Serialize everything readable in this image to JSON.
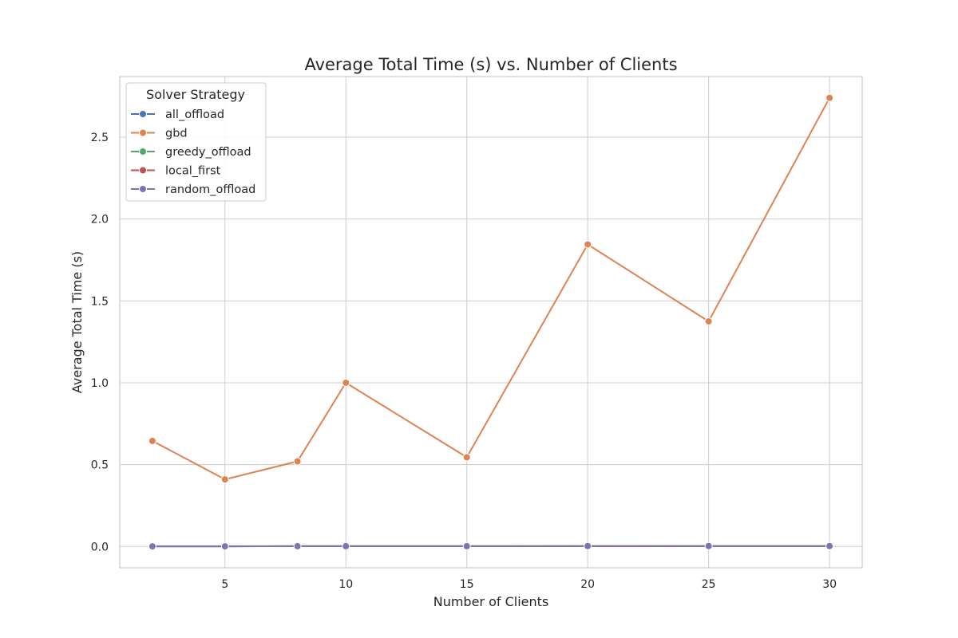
{
  "chart_data": {
    "type": "line",
    "title": "Average Total Time (s) vs. Number of Clients",
    "xlabel": "Number of Clients",
    "ylabel": "Average Total Time (s)",
    "x": [
      2,
      5,
      8,
      10,
      15,
      20,
      25,
      30
    ],
    "xlim": [
      0.65,
      31.35
    ],
    "ylim": [
      -0.13,
      2.87
    ],
    "xticks": [
      5,
      10,
      15,
      20,
      25,
      30
    ],
    "xtick_labels": [
      "5",
      "10",
      "15",
      "20",
      "25",
      "30"
    ],
    "yticks": [
      0.0,
      0.5,
      1.0,
      1.5,
      2.0,
      2.5
    ],
    "ytick_labels": [
      "0.0",
      "0.5",
      "1.0",
      "1.5",
      "2.0",
      "2.5"
    ],
    "grid": true,
    "legend": {
      "title": "Solver Strategy",
      "placement": "upper-left"
    },
    "series": [
      {
        "name": "all_offload",
        "color": "#4c72b0",
        "values": [
          0.002,
          0.002,
          0.002,
          0.002,
          0.002,
          0.002,
          0.002,
          0.002
        ]
      },
      {
        "name": "gbd",
        "color": "#dd8452",
        "values": [
          0.645,
          0.41,
          0.52,
          1.0,
          0.545,
          1.845,
          1.375,
          2.74
        ]
      },
      {
        "name": "greedy_offload",
        "color": "#55a868",
        "values": [
          0.001,
          0.001,
          0.002,
          0.002,
          0.002,
          0.003,
          0.003,
          0.003
        ]
      },
      {
        "name": "local_first",
        "color": "#c44e52",
        "values": [
          0.001,
          0.001,
          0.002,
          0.002,
          0.002,
          0.002,
          0.003,
          0.003
        ]
      },
      {
        "name": "random_offload",
        "color": "#8172b3",
        "values": [
          0.001,
          0.001,
          0.002,
          0.002,
          0.002,
          0.003,
          0.003,
          0.003
        ]
      }
    ]
  }
}
